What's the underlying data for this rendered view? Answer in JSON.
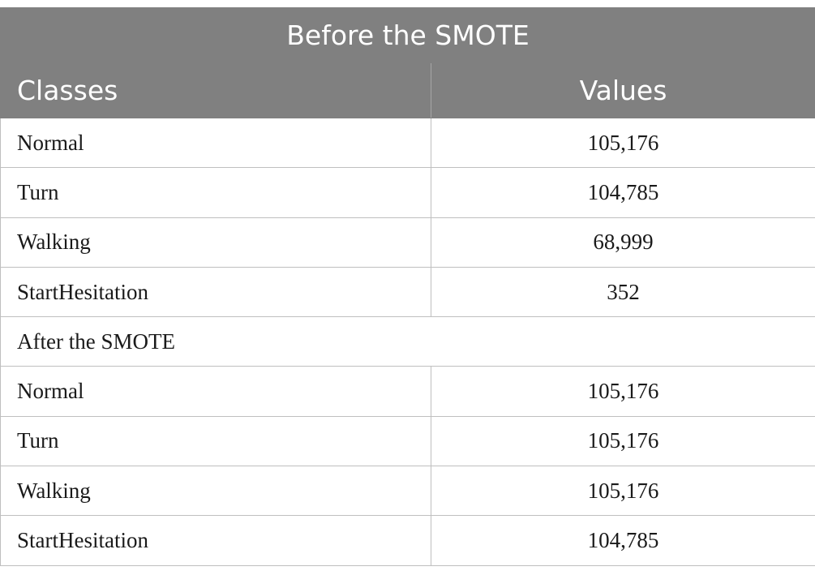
{
  "table": {
    "title": "Before the SMOTE",
    "headers": {
      "classes": "Classes",
      "values": "Values"
    },
    "before_rows": [
      {
        "cls": "Normal",
        "value": "105,176"
      },
      {
        "cls": "Turn",
        "value": "104,785"
      },
      {
        "cls": "Walking",
        "value": "68,999"
      },
      {
        "cls": "StartHesitation",
        "value": "352"
      }
    ],
    "after_section_label": "After the SMOTE",
    "after_rows": [
      {
        "cls": "Normal",
        "value": "105,176"
      },
      {
        "cls": "Turn",
        "value": "105,176"
      },
      {
        "cls": "Walking",
        "value": "105,176"
      },
      {
        "cls": "StartHesitation",
        "value": "104,785"
      }
    ]
  },
  "colors": {
    "header_bg": "#808080",
    "header_text": "#ffffff",
    "grid": "#bfbfbf"
  }
}
